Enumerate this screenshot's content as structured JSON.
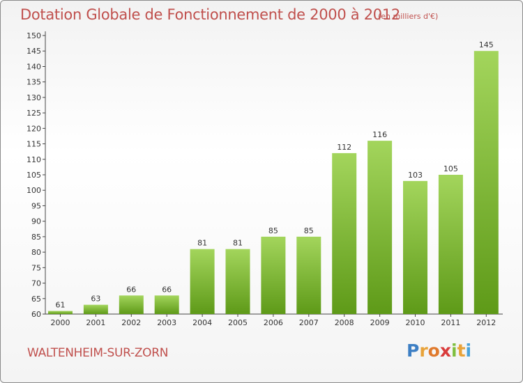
{
  "title": "Dotation Globale de Fonctionnement de 2000 à 2012",
  "subtitle": "(en milliers d'€)",
  "city": "WALTENHEIM-SUR-ZORN",
  "logo": {
    "letters": [
      "P",
      "r",
      "o",
      "x",
      "i",
      "t",
      "i"
    ],
    "colors": [
      "#3d7fc4",
      "#e8a33a",
      "#e07a2d",
      "#d93b3b",
      "#7fbf3f",
      "#e8a33a",
      "#4aa3d9"
    ]
  },
  "colors": {
    "bar_top": "#a3d55c",
    "bar_bottom": "#5e9a18",
    "text": "#c0504d"
  },
  "chart_data": {
    "type": "bar",
    "categories": [
      "2000",
      "2001",
      "2002",
      "2003",
      "2004",
      "2005",
      "2006",
      "2007",
      "2008",
      "2009",
      "2010",
      "2011",
      "2012"
    ],
    "values": [
      61,
      63,
      66,
      66,
      81,
      81,
      85,
      85,
      112,
      116,
      103,
      105,
      145
    ],
    "ylim": [
      60,
      150
    ],
    "yticks": [
      60,
      65,
      70,
      75,
      80,
      85,
      90,
      95,
      100,
      105,
      110,
      115,
      120,
      125,
      130,
      135,
      140,
      145,
      150
    ],
    "grid": false
  }
}
